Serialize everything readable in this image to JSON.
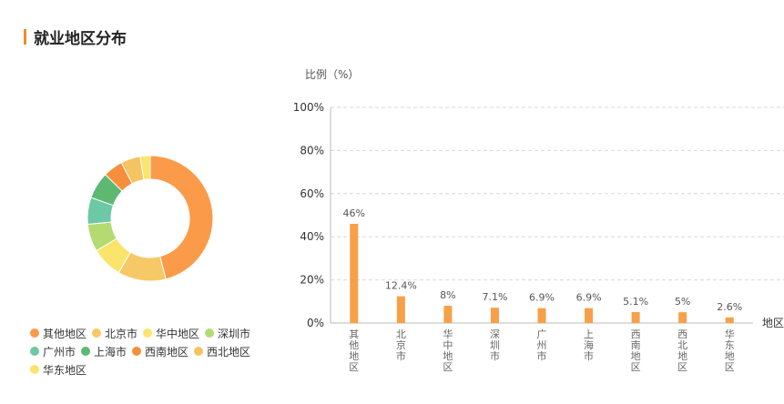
{
  "section": {
    "title": "就业地区分布"
  },
  "colors": {
    "accent": "#f08c2c",
    "bar": "#f7a047",
    "grid": "#d9d9d9"
  },
  "chart_data": [
    {
      "type": "pie",
      "variant": "donut",
      "categories": [
        "其他地区",
        "北京市",
        "华中地区",
        "深圳市",
        "广州市",
        "上海市",
        "西南地区",
        "西北地区",
        "华东地区"
      ],
      "values": [
        46,
        12.4,
        8,
        7.1,
        6.9,
        6.9,
        5.1,
        5,
        2.6
      ],
      "colors": [
        "#fb9b4a",
        "#f6c966",
        "#fbe46c",
        "#b4db72",
        "#6dc8a5",
        "#5eb872",
        "#f58f3b",
        "#f5c460",
        "#fbe46c"
      ],
      "legend": "bottom"
    },
    {
      "type": "bar",
      "categories": [
        "其他地区",
        "北京市",
        "华中地区",
        "深圳市",
        "广州市",
        "上海市",
        "西南地区",
        "西北地区",
        "华东地区"
      ],
      "values": [
        46,
        12.4,
        8,
        7.1,
        6.9,
        6.9,
        5.1,
        5,
        2.6
      ],
      "value_labels": [
        "46%",
        "12.4%",
        "8%",
        "7.1%",
        "6.9%",
        "6.9%",
        "5.1%",
        "5%",
        "2.6%"
      ],
      "ylabel": "比例（%）",
      "xlabel": "地区",
      "ylim": [
        0,
        100
      ],
      "yticks": [
        "0%",
        "20%",
        "40%",
        "60%",
        "80%",
        "100%"
      ],
      "grid": true
    }
  ]
}
